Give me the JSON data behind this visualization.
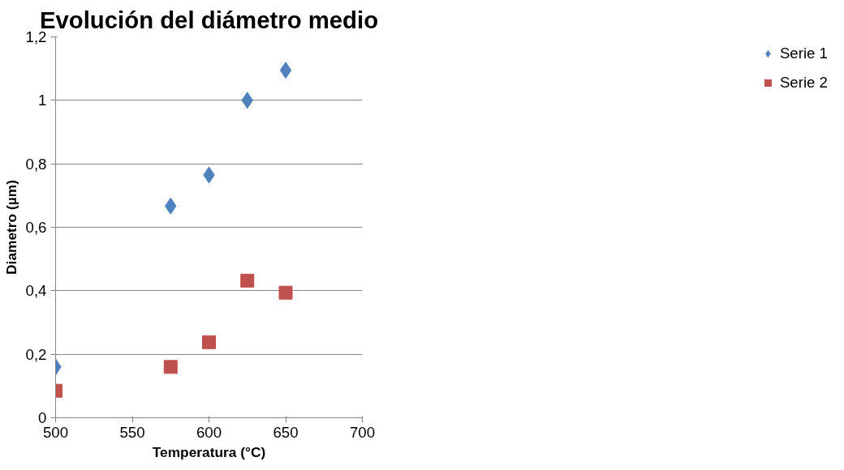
{
  "chart_data": {
    "type": "scatter",
    "title": "Evolución del diámetro medio",
    "xlabel": "Temperatura (°C)",
    "ylabel": "Diametro (µm)",
    "x": [
      500,
      575,
      600,
      625,
      650
    ],
    "series": [
      {
        "name": "Serie 1",
        "color": "#4f81bd",
        "marker": "diamond",
        "values": [
          0.16,
          0.667,
          0.765,
          1.0,
          1.095
        ]
      },
      {
        "name": "Serie 2",
        "color": "#c0504d",
        "marker": "square",
        "values": [
          0.085,
          0.16,
          0.238,
          0.432,
          0.394
        ]
      }
    ],
    "xlim": [
      500,
      700
    ],
    "xticks": [
      500,
      550,
      600,
      650,
      700
    ],
    "ylim": [
      0,
      1.2
    ],
    "yticks": [
      0,
      {
        "value": 0.2,
        "label": "0,2"
      },
      {
        "value": 0.4,
        "label": "0,4"
      },
      {
        "value": 0.6,
        "label": "0,6"
      },
      {
        "value": 0.8,
        "label": "0,8"
      },
      1,
      {
        "value": 1.2,
        "label": "1,2"
      }
    ],
    "grid": "y",
    "legend": "right"
  }
}
